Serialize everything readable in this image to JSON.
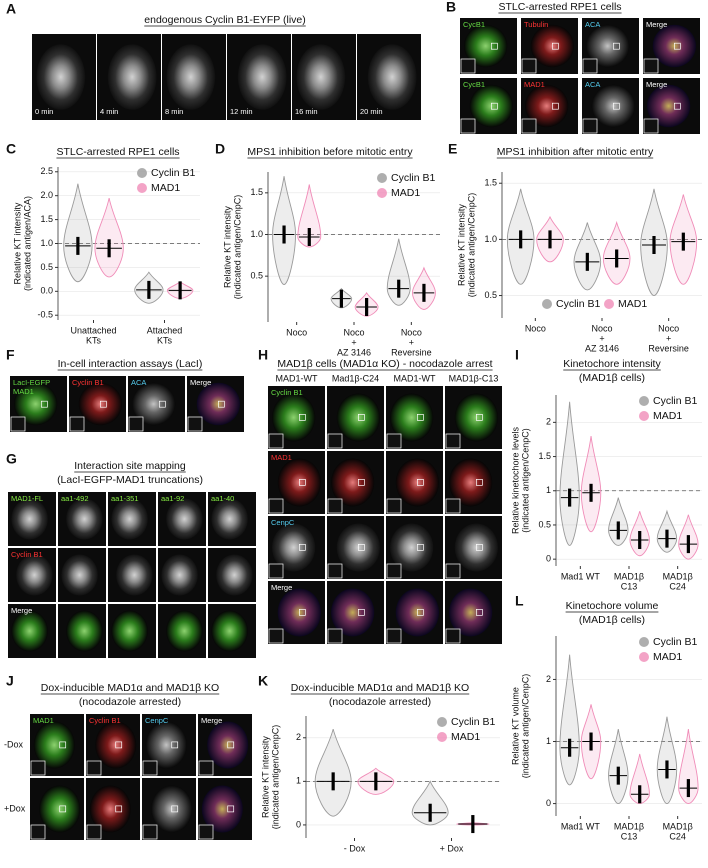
{
  "image_panels": [
    {
      "label": "A",
      "title": "endogenous Cyclin B1-EYFP (live)",
      "grid": [
        [
          {
            "text": "0 min",
            "color": "#ffffff"
          },
          {
            "text": "4 min",
            "color": "#ffffff"
          },
          {
            "text": "8 min",
            "color": "#ffffff"
          },
          {
            "text": "12 min",
            "color": "#ffffff"
          },
          {
            "text": "16 min",
            "color": "#ffffff"
          },
          {
            "text": "20 min",
            "color": "#ffffff"
          }
        ]
      ]
    },
    {
      "label": "B",
      "title": "STLC-arrested RPE1 cells",
      "grid": [
        [
          {
            "text": "CycB1",
            "color": "#66dd44"
          },
          {
            "text": "Tubulin",
            "color": "#ff3333"
          },
          {
            "text": "ACA",
            "color": "#55ccee"
          },
          {
            "text": "Merge",
            "color": "#ffffff"
          }
        ],
        [
          {
            "text": "CycB1",
            "color": "#66dd44"
          },
          {
            "text": "MAD1",
            "color": "#ff3333"
          },
          {
            "text": "ACA",
            "color": "#55ccee"
          },
          {
            "text": "Merge",
            "color": "#ffffff"
          }
        ]
      ]
    },
    {
      "label": "F",
      "title": "In-cell interaction assays (LacI)",
      "grid": [
        [
          {
            "text": [
              "LacI-EGFP",
              "MAD1"
            ],
            "color": "#66dd44"
          },
          {
            "text": "Cyclin B1",
            "color": "#ff3333"
          },
          {
            "text": "ACA",
            "color": "#55ccee"
          },
          {
            "text": "Merge",
            "color": "#ffffff"
          }
        ]
      ]
    },
    {
      "label": "G",
      "title": "Interaction site mapping",
      "subtitle": "(LacI-EGFP-MAD1 truncations)",
      "grid": [
        [
          {
            "text": "MAD1-FL",
            "color": "#88ee44"
          },
          {
            "text": "aa1-492",
            "color": "#88ee44"
          },
          {
            "text": "aa1-351",
            "color": "#88ee44"
          },
          {
            "text": "aa1-92",
            "color": "#88ee44"
          },
          {
            "text": "aa1-40",
            "color": "#88ee44"
          }
        ],
        [
          {
            "text": "Cyclin B1",
            "color": "#ff3333"
          },
          null,
          null,
          null,
          null
        ],
        [
          {
            "text": "Merge",
            "color": "#ffffff"
          },
          null,
          null,
          null,
          null
        ]
      ]
    },
    {
      "label": "H",
      "title": "MAD1β cells (MAD1α KO) - nocodazole arrest",
      "column_headers": [
        "MAD1-WT",
        "Mad1β-C24",
        "MAD1-WT",
        "MAD1β-C13"
      ],
      "grid": [
        [
          {
            "text": "Cyclin B1",
            "color": "#66dd44"
          },
          null,
          null,
          null
        ],
        [
          {
            "text": "MAD1",
            "color": "#ff3333"
          },
          null,
          null,
          null
        ],
        [
          {
            "text": "CenpC",
            "color": "#55ccee"
          },
          null,
          null,
          null
        ],
        [
          {
            "text": "Merge",
            "color": "#ffffff"
          },
          null,
          null,
          null
        ]
      ]
    },
    {
      "label": "J",
      "title": "Dox-inducible MAD1α and MAD1β KO",
      "subtitle": "(nocodazole arrested)",
      "row_labels": [
        "-Dox",
        "+Dox"
      ],
      "grid": [
        [
          {
            "text": "MAD1",
            "color": "#66dd44"
          },
          {
            "text": "Cyclin B1",
            "color": "#ff3333"
          },
          {
            "text": "CenpC",
            "color": "#55ccee"
          },
          {
            "text": "Merge",
            "color": "#ffffff"
          }
        ],
        [
          null,
          null,
          null,
          null
        ]
      ]
    }
  ],
  "charts": [
    {
      "type": "violin",
      "label": "C",
      "title": "STLC-arrested RPE1 cells",
      "ylabel": [
        "Relative KT intensity",
        "(indicated antigen/ACA)"
      ],
      "categories": [
        [
          "Unattached",
          "KTs"
        ],
        [
          "Attached",
          "KTs"
        ]
      ],
      "ylim": [
        -0.6,
        2.6
      ],
      "yticks": [
        {
          "value": -0.5,
          "label": "-0.5"
        },
        {
          "value": 0,
          "label": "0.0"
        },
        0.5,
        {
          "value": 1,
          "label": "1.0"
        },
        1.5,
        {
          "value": 2,
          "label": "2.0"
        },
        2.5
      ],
      "reference_line": 1,
      "legend": "upper right",
      "series": [
        {
          "name": "Cyclin B1",
          "color": "#9a9a9a",
          "values": [
            0.95,
            0.03
          ],
          "low": [
            0.2,
            -0.25
          ],
          "high": [
            2.25,
            0.4
          ]
        },
        {
          "name": "MAD1",
          "color": "#f08cb8",
          "values": [
            0.9,
            0.02
          ],
          "low": [
            0.3,
            -0.15
          ],
          "high": [
            1.95,
            0.2
          ]
        }
      ]
    },
    {
      "type": "violin",
      "label": "D",
      "title": "MPS1 inhibition before mitotic entry",
      "ylabel": [
        "Relative KT intensity",
        "(indicated antigen/CenpC)"
      ],
      "categories": [
        [
          "Noco"
        ],
        [
          "Noco",
          "+",
          "AZ 3146"
        ],
        [
          "Noco",
          "+",
          "Reversine"
        ]
      ],
      "ylim": [
        -0.05,
        1.75
      ],
      "yticks": [
        0.5,
        {
          "value": 1,
          "label": "1.0"
        },
        1.5
      ],
      "reference_line": 1,
      "legend": "upper right",
      "series": [
        {
          "name": "Cyclin B1",
          "color": "#9a9a9a",
          "values": [
            1.0,
            0.23,
            0.35
          ],
          "low": [
            0.4,
            0.12,
            0.15
          ],
          "high": [
            1.7,
            0.35,
            0.95
          ]
        },
        {
          "name": "MAD1",
          "color": "#f08cb8",
          "values": [
            0.97,
            0.13,
            0.3
          ],
          "low": [
            0.85,
            0.02,
            0.1
          ],
          "high": [
            1.6,
            0.3,
            0.6
          ]
        }
      ]
    },
    {
      "type": "violin",
      "label": "E",
      "title": "MPS1 inhibition after mitotic entry",
      "ylabel": [
        "Relative KT intensity",
        "(indicated antigen/CenpC)"
      ],
      "categories": [
        [
          "Noco"
        ],
        [
          "Noco",
          "+",
          "AZ 3146"
        ],
        [
          "Noco",
          "+",
          "Reversine"
        ]
      ],
      "ylim": [
        0.3,
        1.6
      ],
      "yticks": [
        0.5,
        {
          "value": 1,
          "label": "1.0"
        },
        1.5
      ],
      "reference_line": 1,
      "legend": "lower center",
      "series": [
        {
          "name": "Cyclin B1",
          "color": "#9a9a9a",
          "values": [
            1.0,
            0.8,
            0.95
          ],
          "low": [
            0.6,
            0.55,
            0.5
          ],
          "high": [
            1.45,
            1.15,
            1.45
          ]
        },
        {
          "name": "MAD1",
          "color": "#f08cb8",
          "values": [
            1.0,
            0.83,
            0.98
          ],
          "low": [
            0.8,
            0.6,
            0.6
          ],
          "high": [
            1.2,
            1.15,
            1.4
          ]
        }
      ]
    },
    {
      "type": "violin",
      "label": "I",
      "title": "Kinetochore intensity",
      "subtitle": "(MAD1β cells)",
      "ylabel": [
        "Relative kinetochore levels",
        "(indicated antigen/CenpC)"
      ],
      "categories": [
        [
          "Mad1 WT"
        ],
        [
          "MAD1β",
          "C13"
        ],
        [
          "MAD1β",
          "C24"
        ]
      ],
      "ylim": [
        -0.1,
        2.4
      ],
      "yticks": [
        0,
        0.5,
        1,
        1.5,
        2
      ],
      "reference_line": 1,
      "legend": "upper right",
      "series": [
        {
          "name": "Cyclin B1",
          "color": "#9a9a9a",
          "values": [
            0.9,
            0.42,
            0.3
          ],
          "low": [
            0.2,
            0.2,
            0.1
          ],
          "high": [
            2.3,
            0.9,
            0.7
          ]
        },
        {
          "name": "MAD1",
          "color": "#f08cb8",
          "values": [
            0.97,
            0.28,
            0.22
          ],
          "low": [
            0.4,
            0.05,
            0.0
          ],
          "high": [
            1.8,
            0.7,
            0.65
          ]
        }
      ]
    },
    {
      "type": "violin",
      "label": "L",
      "title": "Kinetochore volume",
      "subtitle": "(MAD1β cells)",
      "ylabel": [
        "Relative KT volume",
        "(indicated antigen/CenpC)"
      ],
      "categories": [
        [
          "Mad1 WT"
        ],
        [
          "MAD1β",
          "C13"
        ],
        [
          "MAD1β",
          "C24"
        ]
      ],
      "ylim": [
        -0.2,
        2.7
      ],
      "yticks": [
        0,
        1,
        2
      ],
      "reference_line": 1,
      "legend": "upper right",
      "series": [
        {
          "name": "Cyclin B1",
          "color": "#9a9a9a",
          "values": [
            0.9,
            0.45,
            0.55
          ],
          "low": [
            0.3,
            0.0,
            0.0
          ],
          "high": [
            2.4,
            1.2,
            1.4
          ]
        },
        {
          "name": "MAD1",
          "color": "#f08cb8",
          "values": [
            1.0,
            0.15,
            0.25
          ],
          "low": [
            0.4,
            0.0,
            0.0
          ],
          "high": [
            1.6,
            0.8,
            1.2
          ]
        }
      ]
    },
    {
      "type": "violin",
      "label": "K",
      "title": "Dox-inducible MAD1α and MAD1β KO",
      "subtitle": "(nocodazole arrested)",
      "ylabel": [
        "Relative KT intensity",
        "(indicated antigen/CenpC)"
      ],
      "categories": [
        [
          "- Dox"
        ],
        [
          "+ Dox"
        ]
      ],
      "ylim": [
        -0.3,
        2.5
      ],
      "yticks": [
        0,
        1,
        2
      ],
      "reference_line": 1,
      "legend": "upper right",
      "series": [
        {
          "name": "Cyclin B1",
          "color": "#9a9a9a",
          "values": [
            1.0,
            0.28
          ],
          "low": [
            0.2,
            0.0
          ],
          "high": [
            2.2,
            1.0
          ]
        },
        {
          "name": "MAD1",
          "color": "#f08cb8",
          "values": [
            1.0,
            0.02
          ],
          "low": [
            0.7,
            0.0
          ],
          "high": [
            1.3,
            0.05
          ]
        }
      ]
    }
  ]
}
